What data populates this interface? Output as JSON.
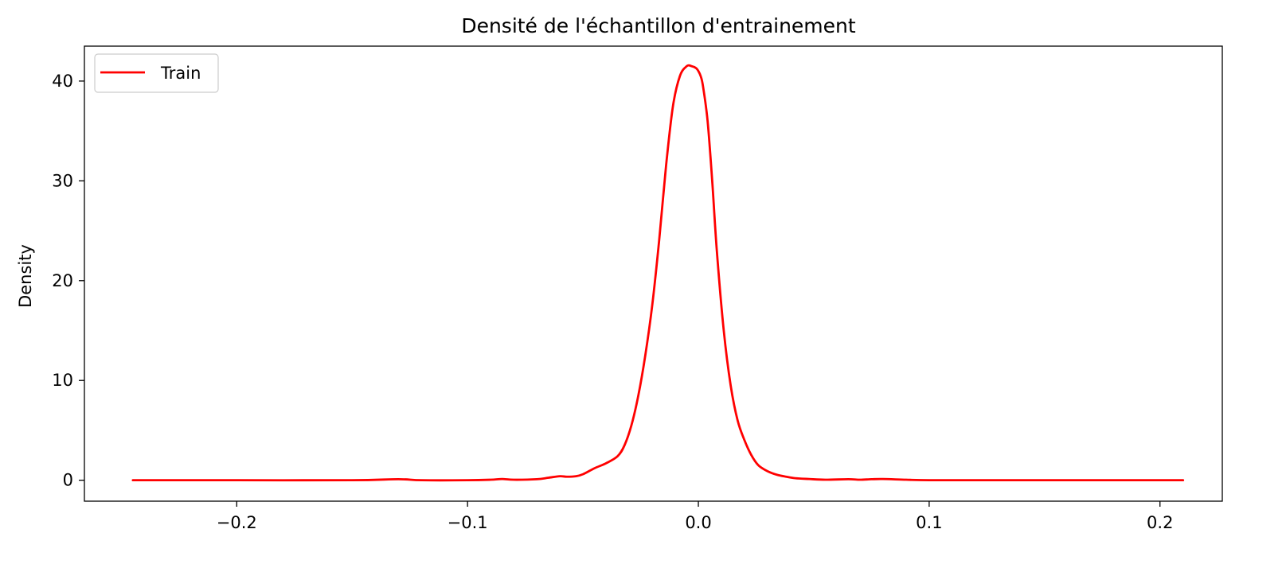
{
  "chart_data": {
    "type": "line",
    "title": "Densité de l'échantillon d'entrainement",
    "xlabel": "",
    "ylabel": "Density",
    "xlim": [
      -0.266,
      0.227
    ],
    "ylim": [
      -2.1,
      43.5
    ],
    "xticks": [
      {
        "value": -0.2,
        "label": "−0.2"
      },
      {
        "value": -0.1,
        "label": "−0.1"
      },
      {
        "value": 0.0,
        "label": "0.0"
      },
      {
        "value": 0.1,
        "label": "0.1"
      },
      {
        "value": 0.2,
        "label": "0.2"
      }
    ],
    "yticks": [
      {
        "value": 0,
        "label": "0"
      },
      {
        "value": 10,
        "label": "10"
      },
      {
        "value": 20,
        "label": "20"
      },
      {
        "value": 30,
        "label": "30"
      },
      {
        "value": 40,
        "label": "40"
      }
    ],
    "grid": false,
    "legend_position": "upper left",
    "series": [
      {
        "name": "Train",
        "color": "#ff0000",
        "x": [
          -0.245,
          -0.2,
          -0.15,
          -0.13,
          -0.12,
          -0.1,
          -0.09,
          -0.085,
          -0.08,
          -0.07,
          -0.065,
          -0.06,
          -0.057,
          -0.053,
          -0.05,
          -0.045,
          -0.04,
          -0.035,
          -0.032,
          -0.029,
          -0.026,
          -0.023,
          -0.02,
          -0.017,
          -0.014,
          -0.011,
          -0.008,
          -0.005,
          -0.003,
          -0.001,
          0.0,
          0.001,
          0.002,
          0.004,
          0.006,
          0.008,
          0.011,
          0.014,
          0.017,
          0.02,
          0.023,
          0.026,
          0.03,
          0.034,
          0.038,
          0.042,
          0.048,
          0.055,
          0.065,
          0.07,
          0.075,
          0.08,
          0.09,
          0.1,
          0.12,
          0.15,
          0.2,
          0.21
        ],
        "y": [
          0,
          0,
          0,
          0.1,
          0,
          0,
          0.05,
          0.12,
          0.05,
          0.1,
          0.25,
          0.4,
          0.35,
          0.4,
          0.6,
          1.2,
          1.7,
          2.4,
          3.5,
          5.5,
          8.5,
          12.5,
          17.5,
          24.0,
          31.5,
          37.5,
          40.5,
          41.5,
          41.5,
          41.3,
          41.0,
          40.5,
          39.5,
          36.0,
          30.0,
          23.0,
          15.0,
          9.5,
          6.0,
          4.0,
          2.5,
          1.5,
          0.9,
          0.55,
          0.35,
          0.2,
          0.12,
          0.05,
          0.1,
          0.05,
          0.1,
          0.12,
          0.05,
          0,
          0,
          0,
          0,
          0
        ]
      }
    ]
  }
}
